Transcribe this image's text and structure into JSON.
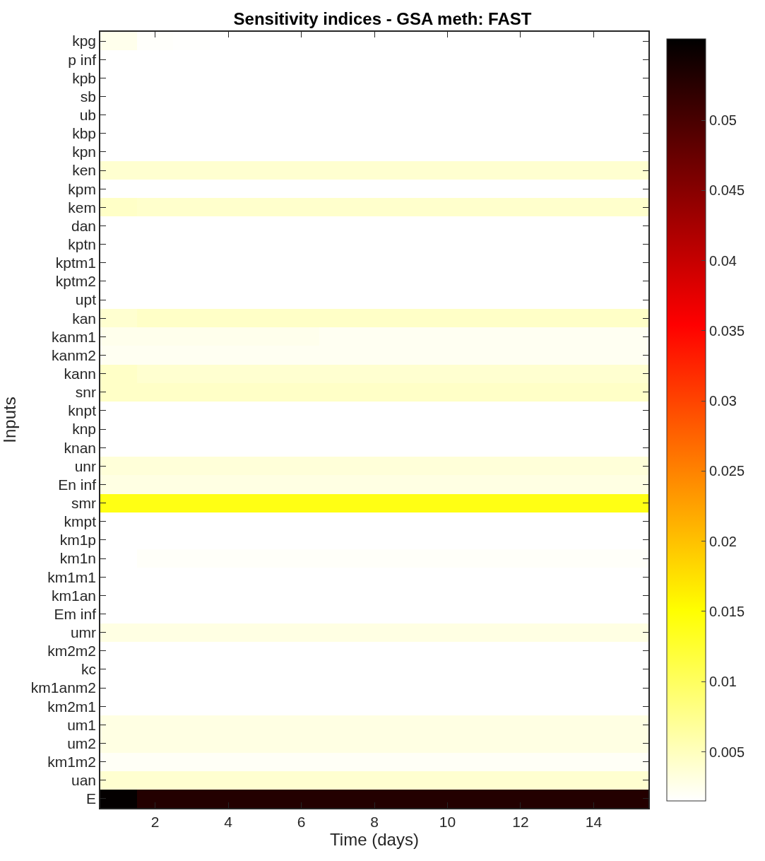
{
  "chart_data": {
    "type": "heatmap",
    "title": "Sensitivity indices - GSA meth: FAST",
    "xlabel": "Time (days)",
    "ylabel": "Inputs",
    "x": [
      1,
      2,
      3,
      4,
      5,
      6,
      7,
      8,
      9,
      10,
      11,
      12,
      13,
      14,
      15
    ],
    "xlim": [
      0.5,
      15.5
    ],
    "xticks": [
      2,
      4,
      6,
      8,
      10,
      12,
      14
    ],
    "y_categories": [
      "kpg",
      "p inf",
      "kpb",
      "sb",
      "ub",
      "kbp",
      "kpn",
      "ken",
      "kpm",
      "kem",
      "dan",
      "kptn",
      "kptm1",
      "kptm2",
      "upt",
      "kan",
      "kanm1",
      "kanm2",
      "kann",
      "snr",
      "knpt",
      "knp",
      "knan",
      "unr",
      "En inf",
      "smr",
      "kmpt",
      "km1p",
      "km1n",
      "km1m1",
      "km1an",
      "Em inf",
      "umr",
      "km2m2",
      "kc",
      "km1anm2",
      "km2m1",
      "um1",
      "um2",
      "km1m2",
      "uan",
      "E"
    ],
    "cells": [
      [
        0.0025,
        0.0017,
        0.0016,
        0.0015,
        0.0015,
        0.0015,
        0.0015,
        0.0015,
        0.0015,
        0.0015,
        0.0015,
        0.0015,
        0.0015,
        0.0015,
        0.0015
      ],
      [
        0.0015,
        0.0015,
        0.0015,
        0.0015,
        0.0015,
        0.0015,
        0.0015,
        0.0015,
        0.0015,
        0.0015,
        0.0015,
        0.0015,
        0.0015,
        0.0015,
        0.0015
      ],
      [
        0.0015,
        0.0015,
        0.0015,
        0.0015,
        0.0015,
        0.0015,
        0.0015,
        0.0015,
        0.0015,
        0.0015,
        0.0015,
        0.0015,
        0.0015,
        0.0015,
        0.0015
      ],
      [
        0.0015,
        0.0015,
        0.0015,
        0.0015,
        0.0015,
        0.0015,
        0.0015,
        0.0015,
        0.0015,
        0.0015,
        0.0015,
        0.0015,
        0.0015,
        0.0015,
        0.0015
      ],
      [
        0.0015,
        0.0015,
        0.0015,
        0.0015,
        0.0015,
        0.0015,
        0.0015,
        0.0015,
        0.0015,
        0.0015,
        0.0015,
        0.0015,
        0.0015,
        0.0015,
        0.0015
      ],
      [
        0.0015,
        0.0015,
        0.0015,
        0.0015,
        0.0015,
        0.0015,
        0.0015,
        0.0015,
        0.0015,
        0.0015,
        0.0015,
        0.0015,
        0.0015,
        0.0015,
        0.0015
      ],
      [
        0.0015,
        0.0015,
        0.0015,
        0.0015,
        0.0015,
        0.0015,
        0.0015,
        0.0015,
        0.0015,
        0.0015,
        0.0015,
        0.0015,
        0.0015,
        0.0015,
        0.0015
      ],
      [
        0.004,
        0.004,
        0.004,
        0.004,
        0.004,
        0.004,
        0.004,
        0.004,
        0.004,
        0.004,
        0.004,
        0.004,
        0.004,
        0.004,
        0.004
      ],
      [
        0.0015,
        0.0015,
        0.0015,
        0.0015,
        0.0015,
        0.0015,
        0.0015,
        0.0015,
        0.0015,
        0.0015,
        0.0015,
        0.0015,
        0.0015,
        0.0015,
        0.0015
      ],
      [
        0.0045,
        0.0042,
        0.0042,
        0.0042,
        0.0042,
        0.0042,
        0.0042,
        0.0042,
        0.0042,
        0.0042,
        0.0042,
        0.0042,
        0.0042,
        0.0042,
        0.0042
      ],
      [
        0.0015,
        0.0015,
        0.0015,
        0.0015,
        0.0015,
        0.0015,
        0.0015,
        0.0015,
        0.0015,
        0.0015,
        0.0015,
        0.0015,
        0.0015,
        0.0015,
        0.0015
      ],
      [
        0.0015,
        0.0015,
        0.0015,
        0.0015,
        0.0015,
        0.0015,
        0.0015,
        0.0015,
        0.0015,
        0.0015,
        0.0015,
        0.0015,
        0.0015,
        0.0015,
        0.0015
      ],
      [
        0.0015,
        0.0015,
        0.0015,
        0.0015,
        0.0015,
        0.0015,
        0.0015,
        0.0015,
        0.0015,
        0.0015,
        0.0015,
        0.0015,
        0.0015,
        0.0015,
        0.0015
      ],
      [
        0.0015,
        0.0015,
        0.0015,
        0.0015,
        0.0015,
        0.0015,
        0.0015,
        0.0015,
        0.0015,
        0.0015,
        0.0015,
        0.0015,
        0.0015,
        0.0015,
        0.0015
      ],
      [
        0.0015,
        0.0015,
        0.0015,
        0.0015,
        0.0015,
        0.0015,
        0.0015,
        0.0015,
        0.0015,
        0.0015,
        0.0015,
        0.0015,
        0.0015,
        0.0015,
        0.0015
      ],
      [
        0.004,
        0.0045,
        0.0045,
        0.0045,
        0.0045,
        0.0045,
        0.0045,
        0.0045,
        0.0045,
        0.0045,
        0.0045,
        0.0045,
        0.0045,
        0.0045,
        0.0045
      ],
      [
        0.0025,
        0.0025,
        0.0025,
        0.0025,
        0.0025,
        0.0025,
        0.0022,
        0.0022,
        0.0022,
        0.0022,
        0.0022,
        0.0022,
        0.0022,
        0.0022,
        0.0022
      ],
      [
        0.0022,
        0.0022,
        0.0022,
        0.0022,
        0.0022,
        0.0022,
        0.0022,
        0.0022,
        0.0022,
        0.0022,
        0.0022,
        0.0022,
        0.0022,
        0.0022,
        0.0022
      ],
      [
        0.0045,
        0.004,
        0.004,
        0.004,
        0.004,
        0.004,
        0.004,
        0.004,
        0.004,
        0.004,
        0.004,
        0.004,
        0.004,
        0.004,
        0.004
      ],
      [
        0.0045,
        0.0045,
        0.0045,
        0.0045,
        0.0045,
        0.0045,
        0.0045,
        0.0045,
        0.0045,
        0.0045,
        0.0045,
        0.0045,
        0.0045,
        0.0045,
        0.0045
      ],
      [
        0.0015,
        0.0015,
        0.0015,
        0.0015,
        0.0015,
        0.0015,
        0.0015,
        0.0015,
        0.0015,
        0.0015,
        0.0015,
        0.0015,
        0.0015,
        0.0015,
        0.0015
      ],
      [
        0.0015,
        0.0015,
        0.0015,
        0.0015,
        0.0015,
        0.0015,
        0.0015,
        0.0015,
        0.0015,
        0.0015,
        0.0015,
        0.0015,
        0.0015,
        0.0015,
        0.0015
      ],
      [
        0.0015,
        0.0015,
        0.0015,
        0.0015,
        0.0015,
        0.0015,
        0.0015,
        0.0015,
        0.0015,
        0.0015,
        0.0015,
        0.0015,
        0.0015,
        0.0015,
        0.0015
      ],
      [
        0.0035,
        0.0035,
        0.0035,
        0.0035,
        0.0035,
        0.0035,
        0.0035,
        0.0035,
        0.0035,
        0.0035,
        0.0035,
        0.0035,
        0.0035,
        0.0035,
        0.0035
      ],
      [
        0.003,
        0.003,
        0.003,
        0.003,
        0.003,
        0.003,
        0.003,
        0.003,
        0.003,
        0.003,
        0.003,
        0.003,
        0.003,
        0.003,
        0.003
      ],
      [
        0.014,
        0.014,
        0.014,
        0.014,
        0.014,
        0.014,
        0.014,
        0.014,
        0.014,
        0.014,
        0.014,
        0.014,
        0.014,
        0.014,
        0.014
      ],
      [
        0.0015,
        0.0015,
        0.0015,
        0.0015,
        0.0015,
        0.0015,
        0.0015,
        0.0015,
        0.0015,
        0.0015,
        0.0015,
        0.0015,
        0.0015,
        0.0015,
        0.0015
      ],
      [
        0.0015,
        0.0015,
        0.0015,
        0.0015,
        0.0015,
        0.0015,
        0.0015,
        0.0015,
        0.0015,
        0.0015,
        0.0015,
        0.0015,
        0.0015,
        0.0015,
        0.0015
      ],
      [
        0.0015,
        0.0018,
        0.0018,
        0.0018,
        0.0018,
        0.0018,
        0.0018,
        0.0018,
        0.0018,
        0.0018,
        0.0018,
        0.0018,
        0.0018,
        0.0018,
        0.0018
      ],
      [
        0.0015,
        0.0015,
        0.0015,
        0.0015,
        0.0015,
        0.0015,
        0.0015,
        0.0015,
        0.0015,
        0.0015,
        0.0015,
        0.0015,
        0.0015,
        0.0015,
        0.0015
      ],
      [
        0.0015,
        0.0015,
        0.0015,
        0.0015,
        0.0015,
        0.0015,
        0.0015,
        0.0015,
        0.0015,
        0.0015,
        0.0015,
        0.0015,
        0.0015,
        0.0015,
        0.0015
      ],
      [
        0.0015,
        0.0015,
        0.0015,
        0.0015,
        0.0015,
        0.0015,
        0.0015,
        0.0015,
        0.0015,
        0.0015,
        0.0015,
        0.0015,
        0.0015,
        0.0015,
        0.0015
      ],
      [
        0.003,
        0.003,
        0.003,
        0.003,
        0.003,
        0.003,
        0.003,
        0.003,
        0.003,
        0.003,
        0.003,
        0.003,
        0.003,
        0.003,
        0.003
      ],
      [
        0.0015,
        0.0015,
        0.0015,
        0.0015,
        0.0015,
        0.0015,
        0.0015,
        0.0015,
        0.0015,
        0.0015,
        0.0015,
        0.0015,
        0.0015,
        0.0015,
        0.0015
      ],
      [
        0.0015,
        0.0015,
        0.0015,
        0.0015,
        0.0015,
        0.0015,
        0.0015,
        0.0015,
        0.0015,
        0.0015,
        0.0015,
        0.0015,
        0.0015,
        0.0015,
        0.0015
      ],
      [
        0.0015,
        0.0015,
        0.0015,
        0.0015,
        0.0015,
        0.0015,
        0.0015,
        0.0015,
        0.0015,
        0.0015,
        0.0015,
        0.0015,
        0.0015,
        0.0015,
        0.0015
      ],
      [
        0.0015,
        0.0015,
        0.0015,
        0.0015,
        0.0015,
        0.0015,
        0.0015,
        0.0015,
        0.0015,
        0.0015,
        0.0015,
        0.0015,
        0.0015,
        0.0015,
        0.0015
      ],
      [
        0.003,
        0.003,
        0.003,
        0.003,
        0.003,
        0.003,
        0.003,
        0.003,
        0.003,
        0.003,
        0.003,
        0.003,
        0.003,
        0.003,
        0.003
      ],
      [
        0.003,
        0.003,
        0.003,
        0.003,
        0.003,
        0.003,
        0.003,
        0.003,
        0.003,
        0.003,
        0.003,
        0.003,
        0.003,
        0.003,
        0.003
      ],
      [
        0.002,
        0.002,
        0.002,
        0.002,
        0.002,
        0.002,
        0.002,
        0.002,
        0.002,
        0.002,
        0.002,
        0.002,
        0.002,
        0.002,
        0.002
      ],
      [
        0.004,
        0.004,
        0.004,
        0.004,
        0.004,
        0.004,
        0.004,
        0.004,
        0.004,
        0.004,
        0.004,
        0.004,
        0.004,
        0.004,
        0.004
      ],
      [
        0.0555,
        0.053,
        0.053,
        0.053,
        0.053,
        0.053,
        0.053,
        0.053,
        0.053,
        0.053,
        0.053,
        0.053,
        0.053,
        0.053,
        0.053
      ]
    ],
    "clim": [
      0.0015,
      0.0558
    ],
    "cticks": [
      0.005,
      0.01,
      0.015,
      0.02,
      0.025,
      0.03,
      0.035,
      0.04,
      0.045,
      0.05
    ]
  }
}
